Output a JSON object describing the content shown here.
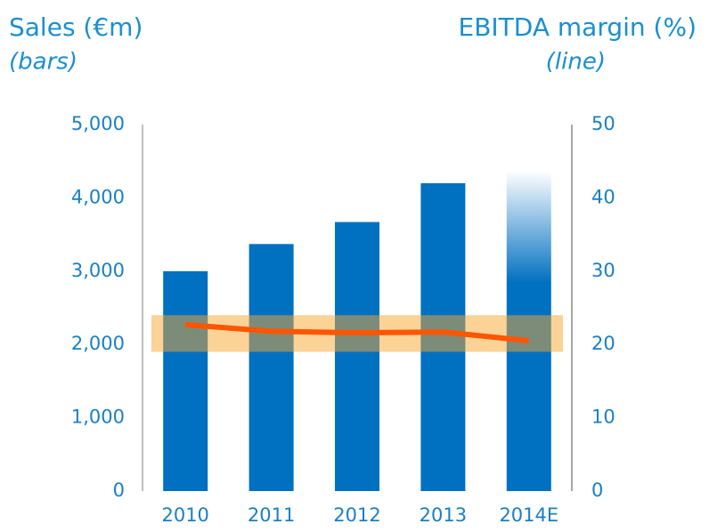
{
  "chart_data": {
    "type": "bar_line",
    "title": "Sales (€m)",
    "subtitle": "(bars)",
    "y2_title": "EBITDA margin (%)",
    "y2_subtitle": "(line)",
    "categories": [
      "2010",
      "2011",
      "2012",
      "2013",
      "2014E"
    ],
    "series": [
      {
        "name": "Sales",
        "color": "#0070c0",
        "type": "bar",
        "values": [
          3000,
          3370,
          3670,
          4200,
          4370
        ]
      },
      {
        "name": "EBITDA margin",
        "color": "#ff5500",
        "type": "line",
        "axis": "y2",
        "values": [
          22.7,
          21.8,
          21.6,
          21.7,
          20.5
        ]
      }
    ],
    "ylim": [
      0,
      5000
    ],
    "yticks": [
      0,
      {
        "value": 1000,
        "label": "1,000"
      },
      {
        "value": 2000,
        "label": "2,000"
      },
      {
        "value": 3000,
        "label": "3,000"
      },
      {
        "value": 4000,
        "label": "4,000"
      },
      {
        "value": 5000,
        "label": "5,000"
      }
    ],
    "y2lim": [
      0,
      50
    ],
    "y2ticks": [
      0,
      10,
      20,
      30,
      40,
      50
    ],
    "y2_band": [
      19,
      24
    ],
    "band_color": "#f7a830",
    "fade_last": true,
    "grid": false
  }
}
